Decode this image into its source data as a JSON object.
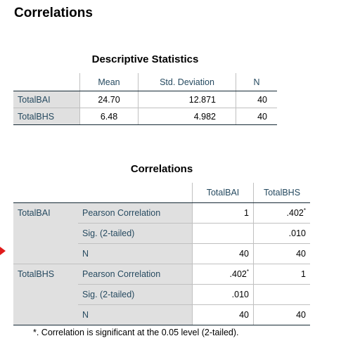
{
  "page_title": "Correlations",
  "descriptive": {
    "title": "Descriptive Statistics",
    "headers": [
      "Mean",
      "Std. Deviation",
      "N"
    ],
    "rows": [
      {
        "label": "TotalBAI",
        "mean": "24.70",
        "sd": "12.871",
        "n": "40"
      },
      {
        "label": "TotalBHS",
        "mean": "6.48",
        "sd": "4.982",
        "n": "40"
      }
    ]
  },
  "correlations": {
    "title": "Correlations",
    "headers": [
      "TotalBAI",
      "TotalBHS"
    ],
    "stat_labels": [
      "Pearson Correlation",
      "Sig. (2-tailed)",
      "N"
    ],
    "groups": [
      {
        "var": "TotalBAI",
        "pearson": [
          "1",
          ".402"
        ],
        "pearson_marks": [
          "",
          "*"
        ],
        "sig": [
          "",
          ".010"
        ],
        "n": [
          "40",
          "40"
        ]
      },
      {
        "var": "TotalBHS",
        "pearson": [
          ".402",
          "1"
        ],
        "pearson_marks": [
          "*",
          ""
        ],
        "sig": [
          ".010",
          ""
        ],
        "n": [
          "40",
          "40"
        ]
      }
    ]
  },
  "footnote": "*. Correlation is significant at the 0.05 level (2-tailed).",
  "colors": {
    "label_bg": "#e0e0e0",
    "label_text": "#264a60",
    "rule": "#152935",
    "marker": "#e01b1b"
  }
}
